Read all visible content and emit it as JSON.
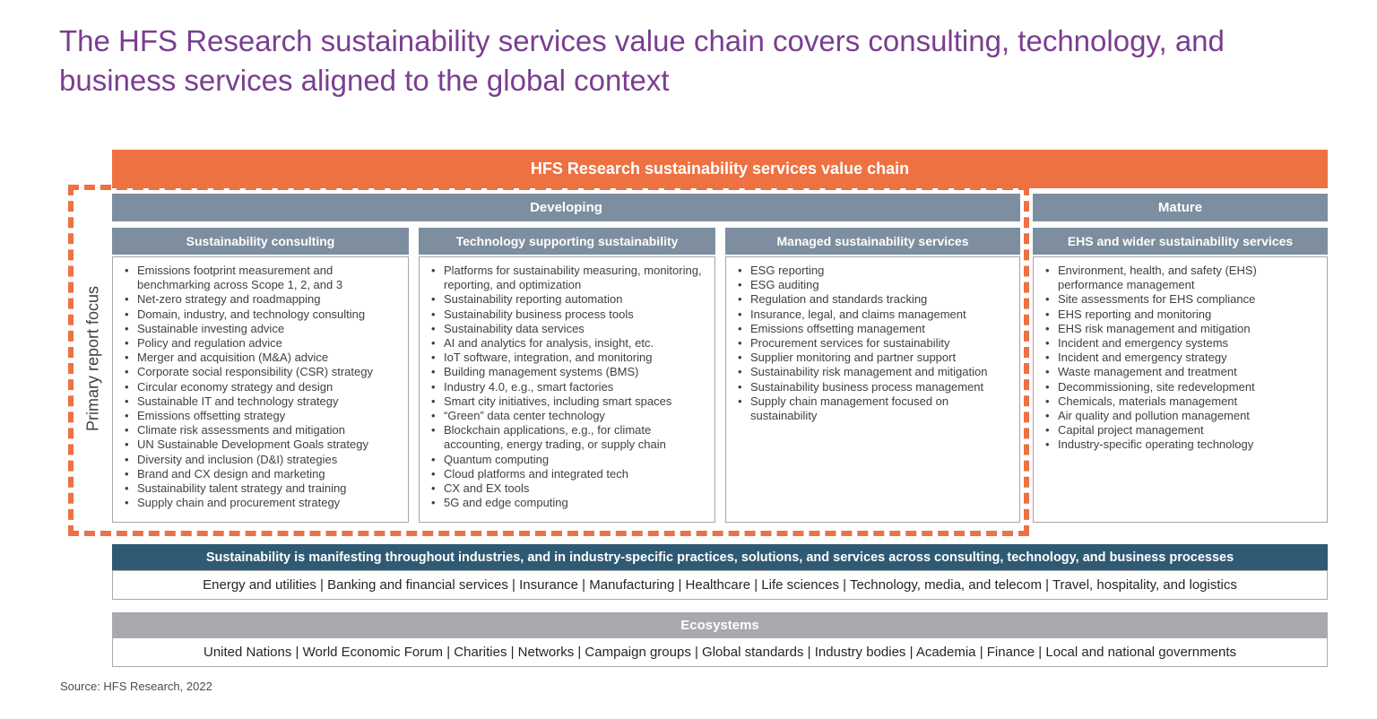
{
  "page": {
    "title": "The HFS Research sustainability services value chain covers consulting, technology, and business services aligned to the global context",
    "source": "Source: HFS Research, 2022"
  },
  "colors": {
    "accent_orange": "#EE7142",
    "slate_blue": "#7D8EA0",
    "navy": "#2E5A73",
    "gray": "#A7A9AC",
    "title_purple": "#7A3E90"
  },
  "value_chain": {
    "header": "HFS Research sustainability services value chain",
    "focus_label": "Primary report focus",
    "stages": [
      {
        "label": "Developing"
      },
      {
        "label": "Mature"
      }
    ],
    "columns": [
      {
        "title": "Sustainability consulting",
        "items": [
          "Emissions footprint measurement and benchmarking across Scope 1, 2, and 3",
          "Net-zero strategy and roadmapping",
          "Domain, industry, and technology consulting",
          "Sustainable investing advice",
          "Policy and regulation advice",
          "Merger and acquisition (M&A) advice",
          "Corporate social responsibility (CSR) strategy",
          "Circular economy strategy and design",
          "Sustainable IT and technology strategy",
          "Emissions offsetting strategy",
          "Climate risk assessments and mitigation",
          "UN Sustainable Development Goals strategy",
          "Diversity and inclusion (D&I) strategies",
          "Brand and CX design and marketing",
          "Sustainability talent strategy and training",
          "Supply chain and procurement strategy"
        ]
      },
      {
        "title": "Technology supporting sustainability",
        "items": [
          "Platforms for sustainability measuring, monitoring, reporting, and optimization",
          "Sustainability reporting automation",
          "Sustainability business process tools",
          "Sustainability data services",
          "AI and analytics for analysis, insight, etc.",
          "IoT software, integration, and monitoring",
          "Building management systems (BMS)",
          "Industry 4.0, e.g., smart factories",
          "Smart city initiatives, including smart spaces",
          "“Green” data center technology",
          "Blockchain applications, e.g., for climate accounting, energy trading, or supply chain",
          "Quantum computing",
          "Cloud platforms and integrated tech",
          "CX and EX tools",
          "5G and edge computing"
        ]
      },
      {
        "title": "Managed sustainability services",
        "items": [
          "ESG reporting",
          "ESG auditing",
          "Regulation and standards tracking",
          "Insurance, legal, and claims management",
          "Emissions offsetting management",
          "Procurement services for sustainability",
          "Supplier monitoring and partner support",
          "Sustainability risk management and mitigation",
          "Sustainability business process management",
          "Supply chain management focused on sustainability"
        ]
      },
      {
        "title": "EHS and wider sustainability services",
        "items": [
          "Environment, health, and safety (EHS) performance management",
          "Site assessments for EHS compliance",
          "EHS reporting and monitoring",
          "EHS risk management and mitigation",
          "Incident and emergency systems",
          "Incident and emergency strategy",
          "Waste management and treatment",
          "Decommissioning, site redevelopment",
          "Chemicals, materials management",
          "Air quality and pollution management",
          "Capital project management",
          "Industry-specific operating technology"
        ]
      }
    ]
  },
  "industries": {
    "header": "Sustainability is manifesting throughout industries, and in industry-specific practices, solutions, and services across consulting, technology, and business processes",
    "items_text": "Energy and utilities | Banking and financial services | Insurance | Manufacturing | Healthcare | Life sciences | Technology, media, and telecom | Travel, hospitality, and logistics"
  },
  "ecosystems": {
    "header": "Ecosystems",
    "items_text": "United Nations | World Economic Forum | Charities | Networks | Campaign groups | Global standards | Industry bodies | Academia | Finance | Local and national governments"
  }
}
